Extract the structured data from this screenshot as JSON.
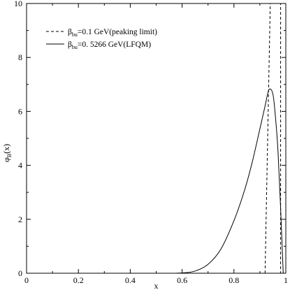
{
  "chart_data": {
    "type": "line",
    "xlabel": "x",
    "ylabel": {
      "base": "φ",
      "sub": "B",
      "suffix": "(x)"
    },
    "xlim": [
      0,
      1
    ],
    "ylim": [
      0,
      10
    ],
    "x_ticks": [
      0,
      0.2,
      0.4,
      0.6,
      0.8,
      1
    ],
    "x_tick_labels": [
      "0",
      "0.2",
      "0.4",
      "0.6",
      "0.8",
      "1"
    ],
    "y_ticks": [
      0,
      2,
      4,
      6,
      8,
      10
    ],
    "y_tick_labels": [
      "0",
      "2",
      "4",
      "6",
      "8",
      "10"
    ],
    "grid": false,
    "legend_position": "top-left",
    "series": [
      {
        "legend": {
          "base": "β",
          "sub": "bu",
          "rest": "=0.1 GeV(peaking limit)"
        },
        "style": "dashed",
        "color": "#000000",
        "x": [
          0.92,
          0.94,
          0.94,
          0.98,
          0.98
        ],
        "y": [
          0,
          10,
          10,
          10,
          0
        ]
      },
      {
        "legend": {
          "base": "β",
          "sub": "bu",
          "rest": "=0. 5266 GeV(LFQM)"
        },
        "style": "solid",
        "color": "#000000",
        "x": [
          0.55,
          0.6,
          0.65,
          0.7,
          0.75,
          0.8,
          0.84,
          0.87,
          0.9,
          0.92,
          0.935,
          0.95,
          0.96,
          0.97,
          0.98,
          0.99
        ],
        "y": [
          0,
          0.01,
          0.08,
          0.33,
          0.9,
          1.95,
          3.05,
          4.1,
          5.35,
          6.2,
          6.8,
          6.65,
          5.8,
          4.5,
          2.4,
          0
        ]
      }
    ]
  }
}
